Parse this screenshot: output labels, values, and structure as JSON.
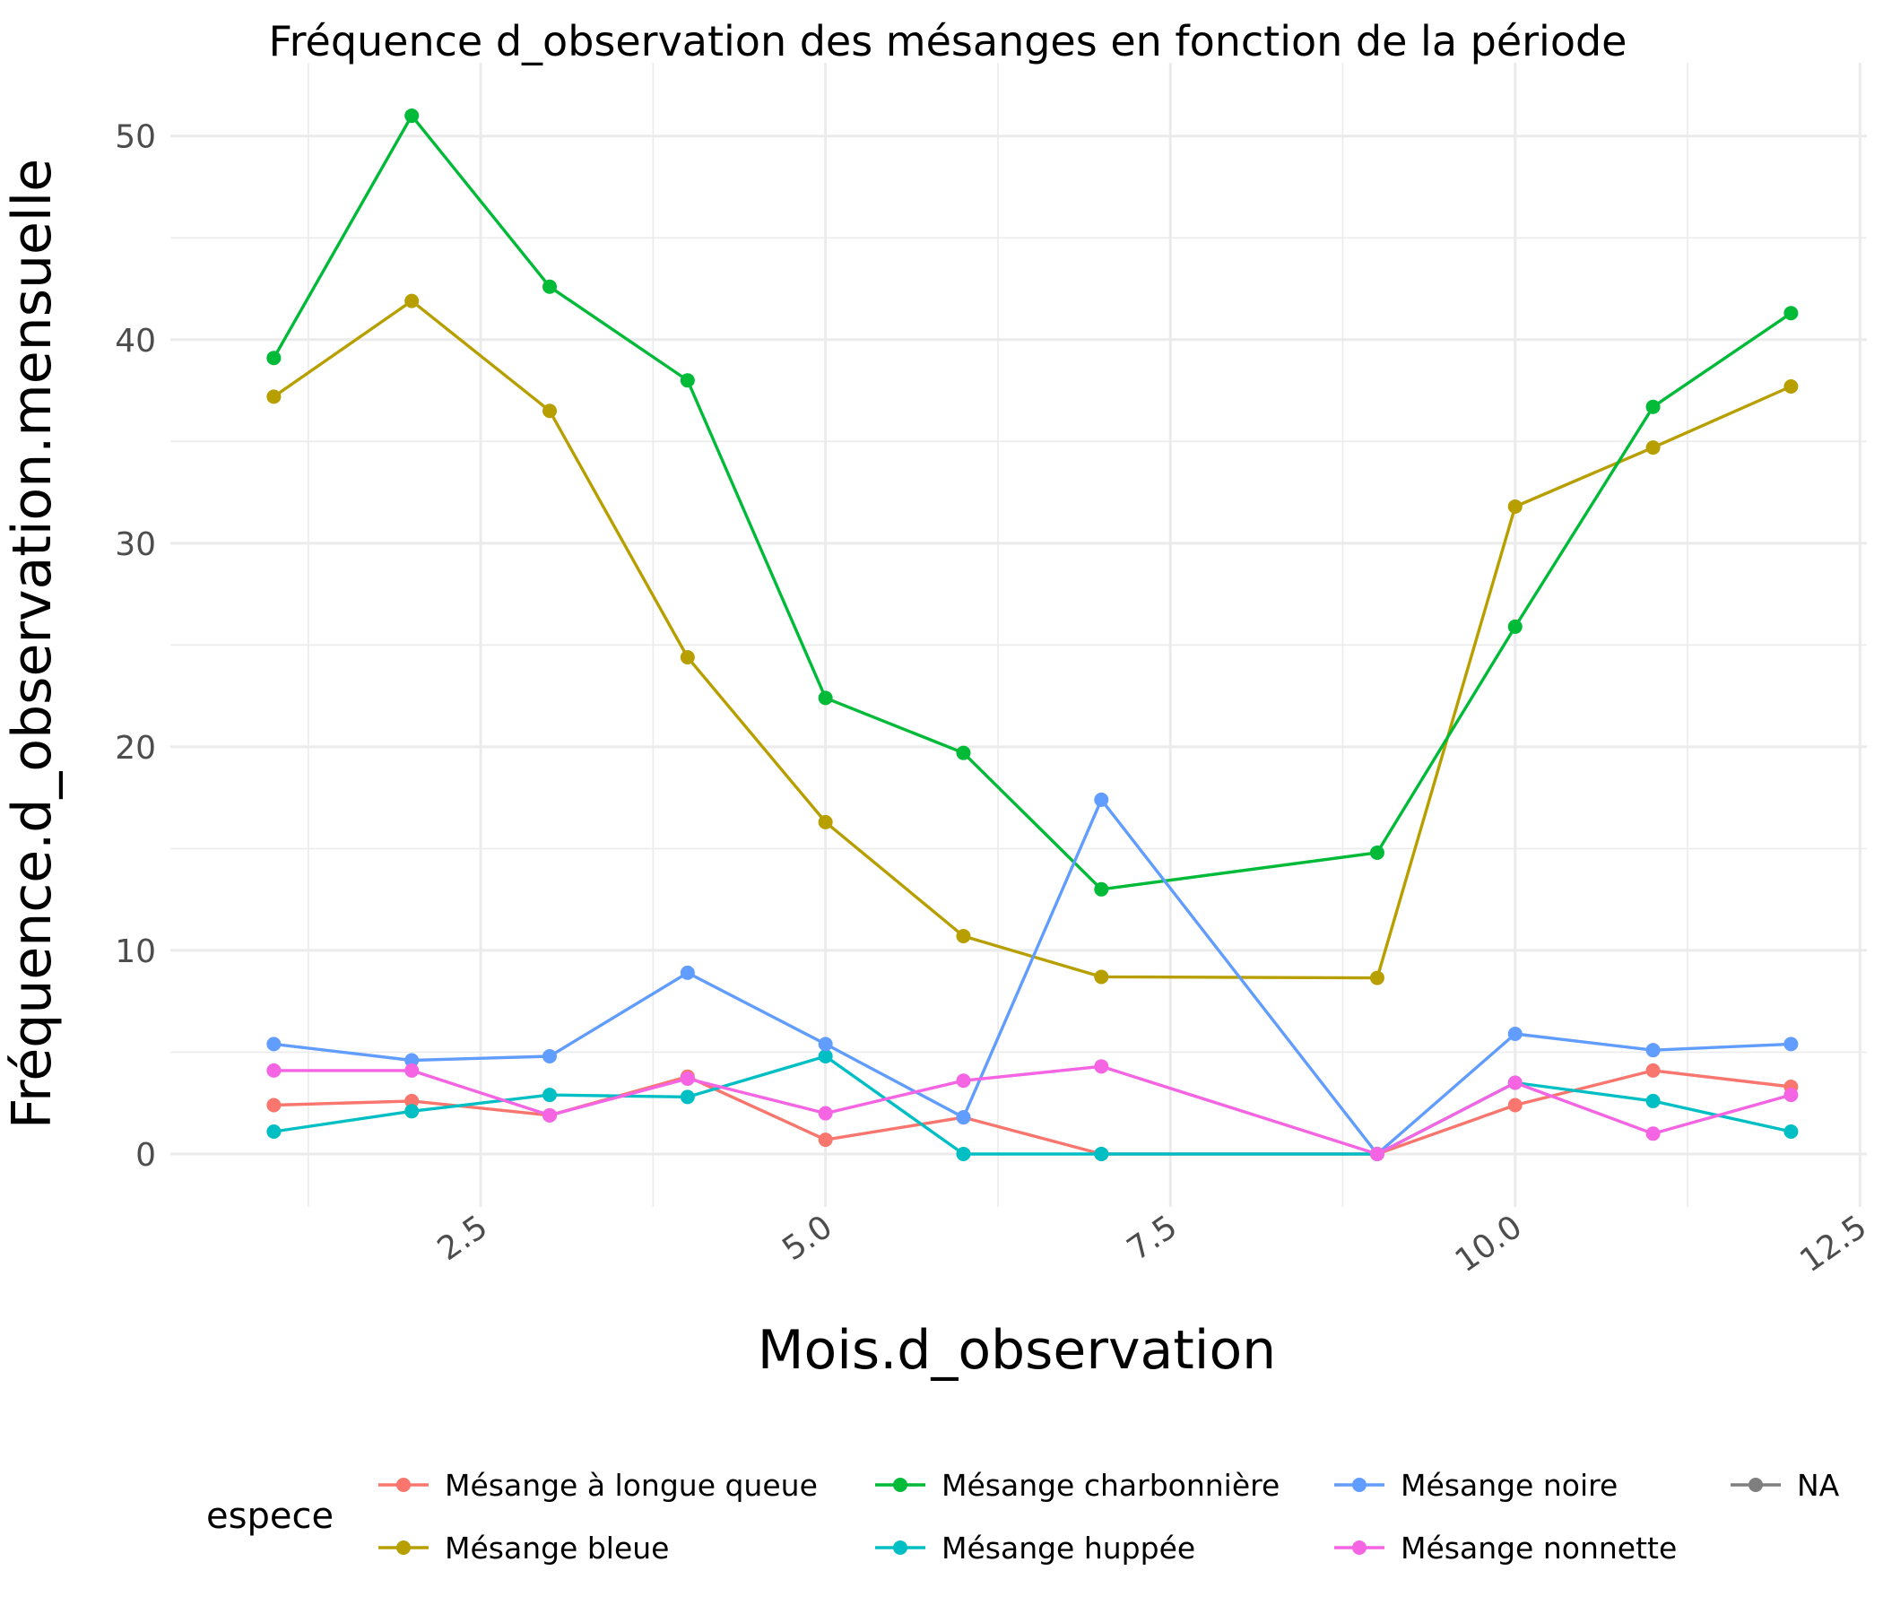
{
  "chart_data": {
    "type": "line",
    "title": "Fréquence d_observation des mésanges en fonction de la période",
    "xlabel": "Mois.d_observation",
    "ylabel": "Fréquence.d_observation.mensuelle",
    "x": [
      1,
      2,
      3,
      4,
      5,
      6,
      7,
      9,
      10,
      11,
      12
    ],
    "xlim": [
      0.25,
      12.55
    ],
    "ylim": [
      -2.6,
      53.6
    ],
    "x_ticks": [
      2.5,
      5.0,
      7.5,
      10.0,
      12.5
    ],
    "x_tick_labels": [
      "2.5",
      "5.0",
      "7.5",
      "10.0",
      "12.5"
    ],
    "y_ticks": [
      0,
      10,
      20,
      30,
      40,
      50
    ],
    "y_tick_labels": [
      "0",
      "10",
      "20",
      "30",
      "40",
      "50"
    ],
    "grid": true,
    "legend": {
      "title": "espece",
      "position": "bottom",
      "entries": [
        {
          "label": "Mésange à longue queue",
          "color": "#F8766D"
        },
        {
          "label": "Mésange bleue",
          "color": "#B79F00"
        },
        {
          "label": "Mésange charbonnière",
          "color": "#00BA38"
        },
        {
          "label": "Mésange huppée",
          "color": "#00BFC4"
        },
        {
          "label": "Mésange noire",
          "color": "#619CFF"
        },
        {
          "label": "Mésange nonnette",
          "color": "#F564E3"
        },
        {
          "label": "NA",
          "color": "#7F7F7F"
        }
      ]
    },
    "series": [
      {
        "name": "Mésange à longue queue",
        "color": "#F8766D",
        "values": [
          2.4,
          2.6,
          1.9,
          3.8,
          0.7,
          1.8,
          0.0,
          0.0,
          2.4,
          4.1,
          3.3
        ]
      },
      {
        "name": "Mésange bleue",
        "color": "#B79F00",
        "values": [
          37.2,
          41.9,
          36.5,
          24.4,
          16.3,
          10.7,
          8.7,
          8.65,
          31.8,
          34.7,
          37.7
        ]
      },
      {
        "name": "Mésange charbonnière",
        "color": "#00BA38",
        "values": [
          39.1,
          51.0,
          42.6,
          38.0,
          22.4,
          19.7,
          13.0,
          14.8,
          25.9,
          36.7,
          41.3
        ]
      },
      {
        "name": "Mésange huppée",
        "color": "#00BFC4",
        "values": [
          1.1,
          2.1,
          2.9,
          2.8,
          4.8,
          0.0,
          0.0,
          0.0,
          3.5,
          2.6,
          1.1
        ]
      },
      {
        "name": "Mésange noire",
        "color": "#619CFF",
        "values": [
          5.4,
          4.6,
          4.8,
          8.9,
          5.4,
          1.8,
          17.4,
          0.0,
          5.9,
          5.1,
          5.4
        ]
      },
      {
        "name": "Mésange nonnette",
        "color": "#F564E3",
        "values": [
          4.1,
          4.1,
          1.9,
          3.7,
          2.0,
          3.6,
          4.3,
          0.0,
          3.5,
          1.0,
          2.9
        ]
      }
    ]
  }
}
